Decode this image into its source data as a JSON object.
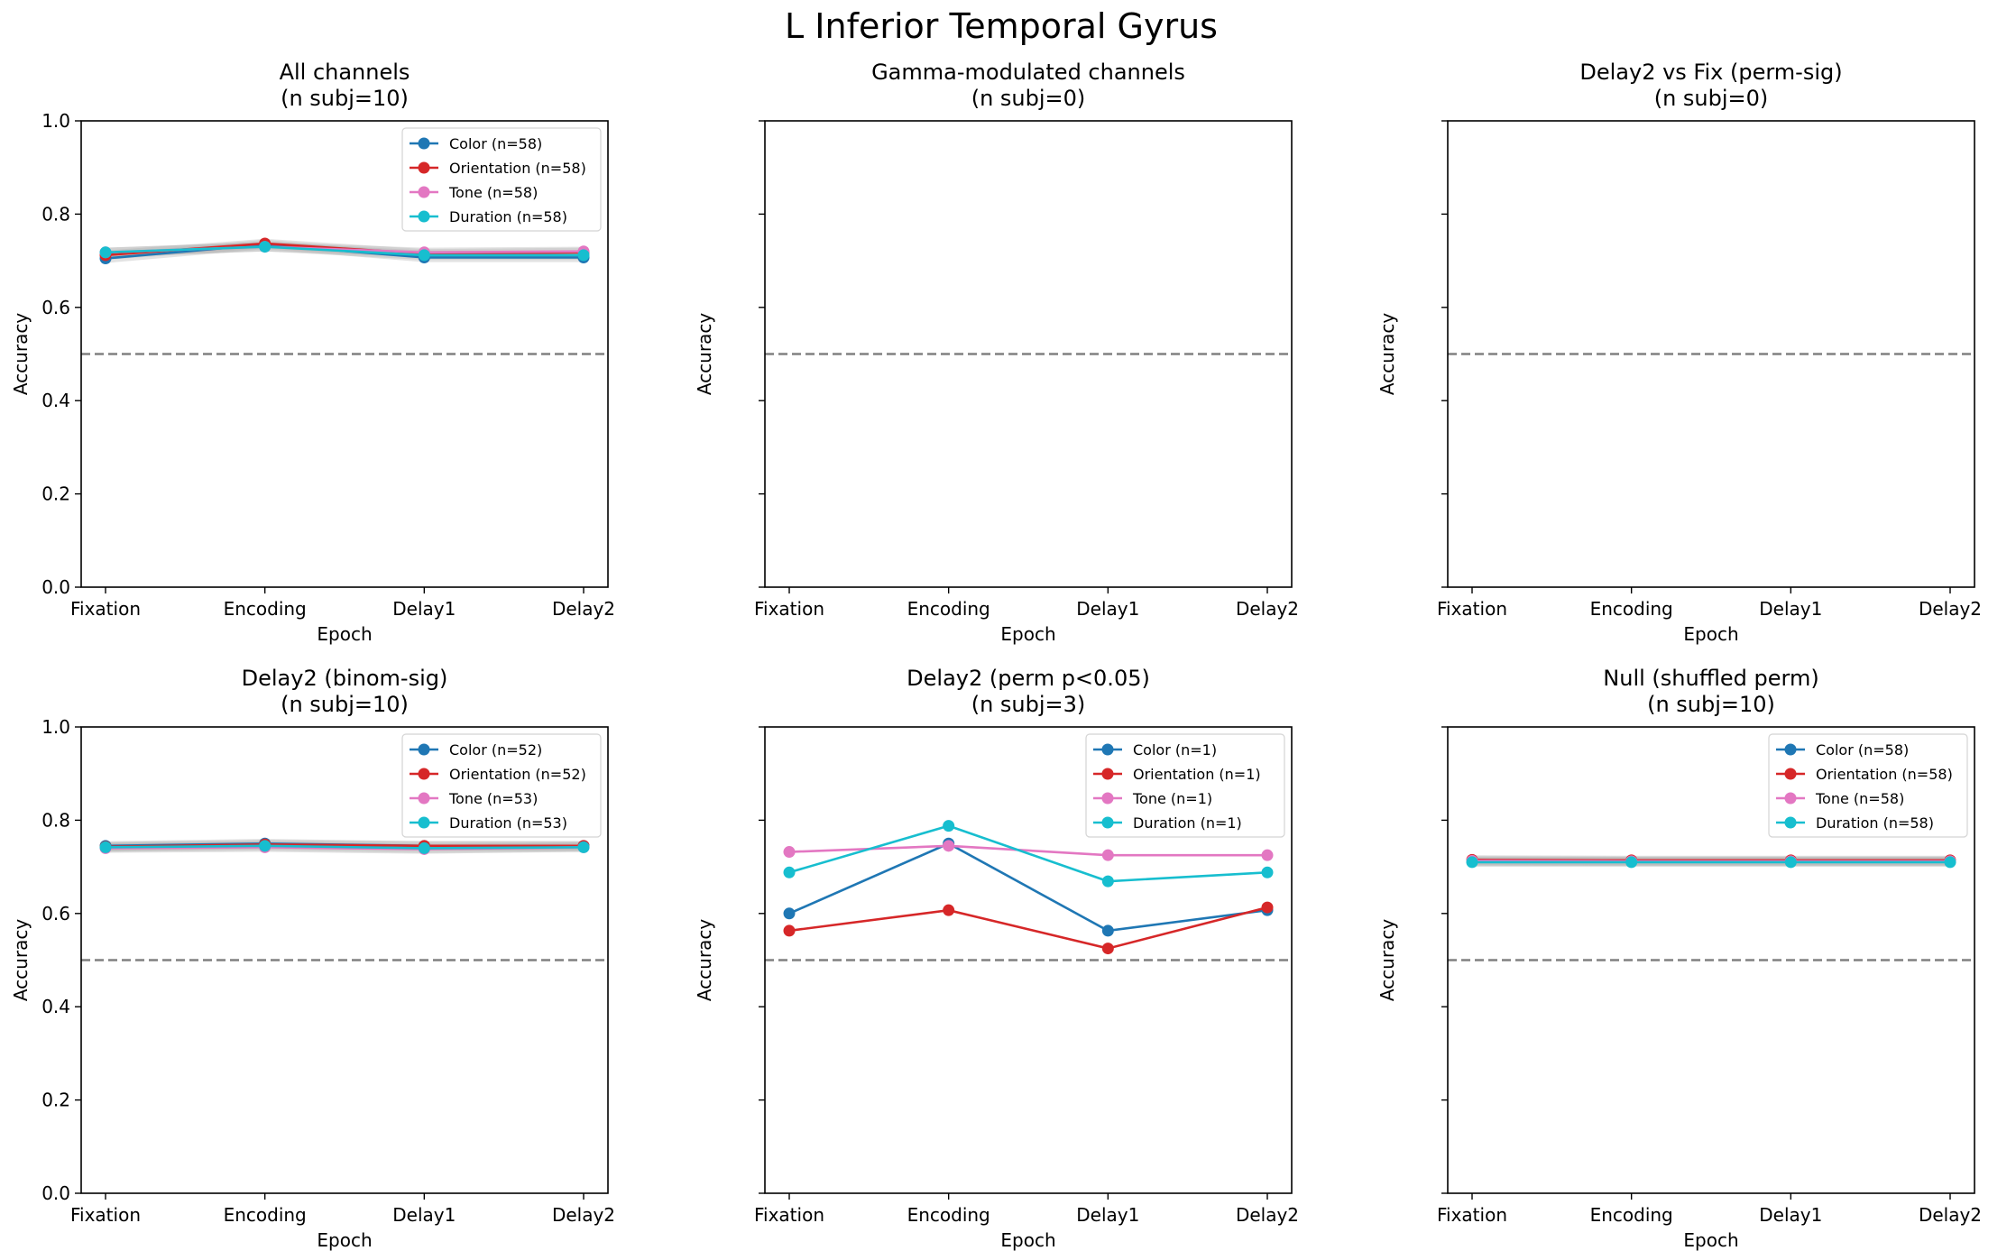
{
  "suptitle": "L Inferior Temporal Gyrus",
  "colors": {
    "Color": "#1f77b4",
    "Orientation": "#d62728",
    "Tone": "#e377c2",
    "Duration": "#17becf",
    "chance_line": "#808080",
    "band": "#b0b0b0"
  },
  "chart_data": [
    {
      "type": "line",
      "title": "All channels\n(n subj=10)",
      "xlabel": "Epoch",
      "ylabel": "Accuracy",
      "categories": [
        "Fixation",
        "Encoding",
        "Delay1",
        "Delay2"
      ],
      "ylim": [
        0,
        1
      ],
      "yticks": [
        "0.0",
        "0.2",
        "0.4",
        "0.6",
        "0.8",
        "1.0"
      ],
      "show_ytick_labels": true,
      "chance": 0.5,
      "legend": "top-right",
      "band": true,
      "series": [
        {
          "name": "Color (n=58)",
          "key": "Color",
          "values": [
            0.705,
            0.735,
            0.707,
            0.707
          ]
        },
        {
          "name": "Orientation (n=58)",
          "key": "Orientation",
          "values": [
            0.712,
            0.737,
            0.715,
            0.718
          ]
        },
        {
          "name": "Tone (n=58)",
          "key": "Tone",
          "values": [
            0.718,
            0.73,
            0.718,
            0.72
          ]
        },
        {
          "name": "Duration (n=58)",
          "key": "Duration",
          "values": [
            0.718,
            0.73,
            0.712,
            0.712
          ]
        }
      ]
    },
    {
      "type": "line",
      "title": "Gamma-modulated channels\n(n subj=0)",
      "xlabel": "Epoch",
      "ylabel": "Accuracy",
      "categories": [
        "Fixation",
        "Encoding",
        "Delay1",
        "Delay2"
      ],
      "ylim": [
        0,
        1
      ],
      "yticks": [
        "0.0",
        "0.2",
        "0.4",
        "0.6",
        "0.8",
        "1.0"
      ],
      "show_ytick_labels": false,
      "chance": 0.5,
      "legend": "",
      "band": false,
      "series": []
    },
    {
      "type": "line",
      "title": "Delay2 vs Fix (perm-sig)\n(n subj=0)",
      "xlabel": "Epoch",
      "ylabel": "Accuracy",
      "categories": [
        "Fixation",
        "Encoding",
        "Delay1",
        "Delay2"
      ],
      "ylim": [
        0,
        1
      ],
      "yticks": [
        "0.0",
        "0.2",
        "0.4",
        "0.6",
        "0.8",
        "1.0"
      ],
      "show_ytick_labels": false,
      "chance": 0.5,
      "legend": "",
      "band": false,
      "series": []
    },
    {
      "type": "line",
      "title": "Delay2 (binom-sig)\n(n subj=10)",
      "xlabel": "Epoch",
      "ylabel": "Accuracy",
      "categories": [
        "Fixation",
        "Encoding",
        "Delay1",
        "Delay2"
      ],
      "ylim": [
        0,
        1
      ],
      "yticks": [
        "0.0",
        "0.2",
        "0.4",
        "0.6",
        "0.8",
        "1.0"
      ],
      "show_ytick_labels": true,
      "chance": 0.5,
      "legend": "top-right",
      "band": true,
      "series": [
        {
          "name": "Color (n=52)",
          "key": "Color",
          "values": [
            0.745,
            0.75,
            0.745,
            0.745
          ]
        },
        {
          "name": "Orientation (n=52)",
          "key": "Orientation",
          "values": [
            0.743,
            0.748,
            0.745,
            0.745
          ]
        },
        {
          "name": "Tone (n=53)",
          "key": "Tone",
          "values": [
            0.74,
            0.742,
            0.738,
            0.742
          ]
        },
        {
          "name": "Duration (n=53)",
          "key": "Duration",
          "values": [
            0.742,
            0.745,
            0.74,
            0.742
          ]
        }
      ]
    },
    {
      "type": "line",
      "title": "Delay2 (perm p<0.05)\n(n subj=3)",
      "xlabel": "Epoch",
      "ylabel": "Accuracy",
      "categories": [
        "Fixation",
        "Encoding",
        "Delay1",
        "Delay2"
      ],
      "ylim": [
        0,
        1
      ],
      "yticks": [
        "0.0",
        "0.2",
        "0.4",
        "0.6",
        "0.8",
        "1.0"
      ],
      "show_ytick_labels": false,
      "chance": 0.5,
      "legend": "top-right",
      "band": false,
      "series": [
        {
          "name": "Color (n=1)",
          "key": "Color",
          "values": [
            0.6,
            0.75,
            0.563,
            0.607
          ]
        },
        {
          "name": "Orientation (n=1)",
          "key": "Orientation",
          "values": [
            0.563,
            0.607,
            0.525,
            0.613
          ]
        },
        {
          "name": "Tone (n=1)",
          "key": "Tone",
          "values": [
            0.732,
            0.745,
            0.725,
            0.725
          ]
        },
        {
          "name": "Duration (n=1)",
          "key": "Duration",
          "values": [
            0.688,
            0.788,
            0.669,
            0.688
          ]
        }
      ]
    },
    {
      "type": "line",
      "title": "Null (shuffled perm)\n(n subj=10)",
      "xlabel": "Epoch",
      "ylabel": "Accuracy",
      "categories": [
        "Fixation",
        "Encoding",
        "Delay1",
        "Delay2"
      ],
      "ylim": [
        0,
        1
      ],
      "yticks": [
        "0.0",
        "0.2",
        "0.4",
        "0.6",
        "0.8",
        "1.0"
      ],
      "show_ytick_labels": false,
      "chance": 0.5,
      "legend": "top-right",
      "band": true,
      "series": [
        {
          "name": "Color (n=58)",
          "key": "Color",
          "values": [
            0.712,
            0.712,
            0.712,
            0.712
          ]
        },
        {
          "name": "Orientation (n=58)",
          "key": "Orientation",
          "values": [
            0.715,
            0.714,
            0.714,
            0.714
          ]
        },
        {
          "name": "Tone (n=58)",
          "key": "Tone",
          "values": [
            0.713,
            0.712,
            0.712,
            0.712
          ]
        },
        {
          "name": "Duration (n=58)",
          "key": "Duration",
          "values": [
            0.71,
            0.71,
            0.71,
            0.71
          ]
        }
      ]
    }
  ]
}
